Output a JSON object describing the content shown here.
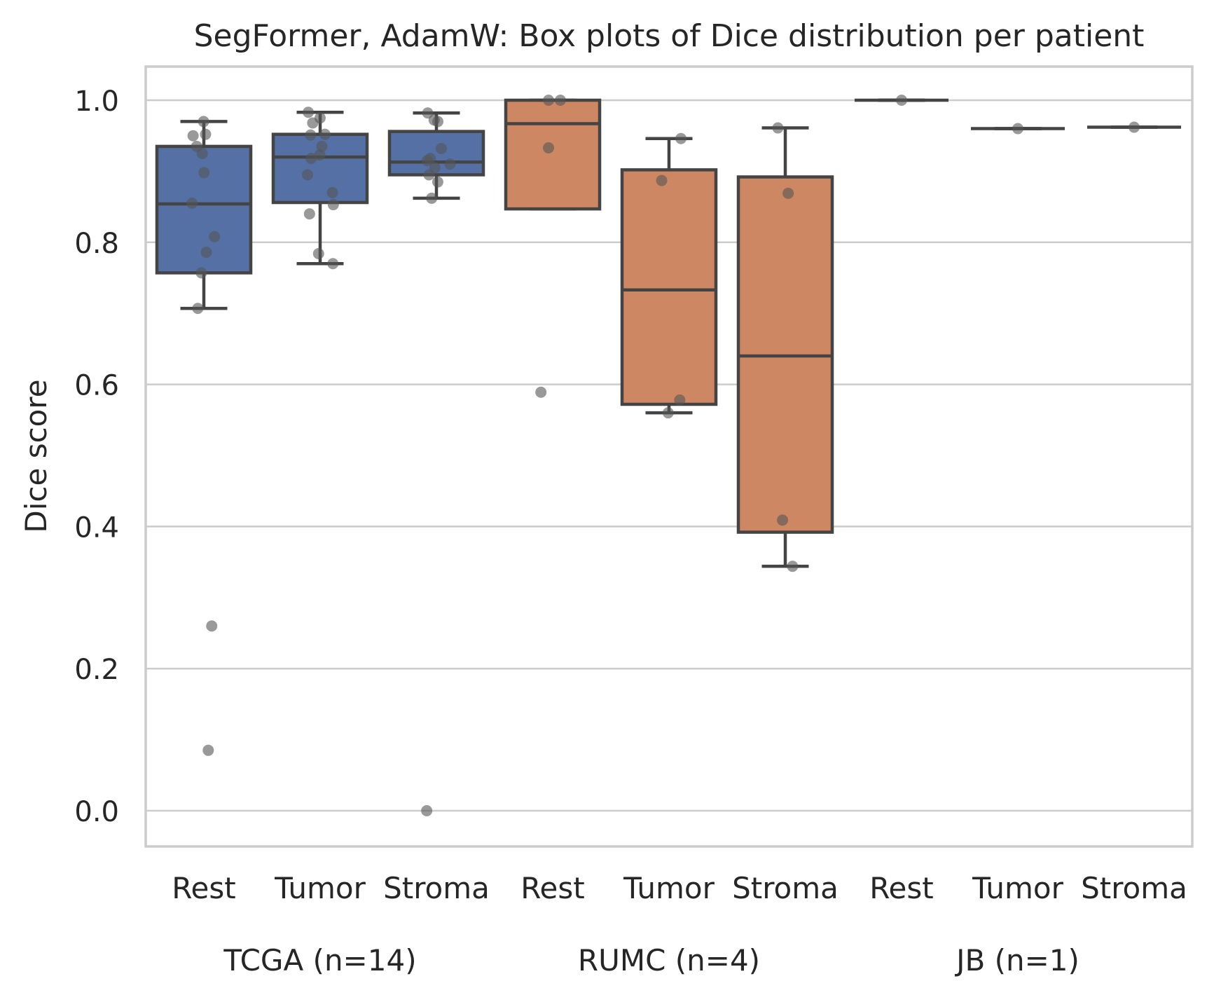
{
  "chart_data": {
    "type": "box",
    "title": "SegFormer, AdamW: Box plots of Dice distribution per patient",
    "ylabel": "Dice score",
    "xlabel": "",
    "ylim": [
      -0.05,
      1.05
    ],
    "yticks": [
      "0.0",
      "0.2",
      "0.4",
      "0.6",
      "0.8",
      "1.0"
    ],
    "grid": true,
    "colors": {
      "TCGA": "#5470a5",
      "RUMC": "#cd8762",
      "JB": "#cd8762",
      "edge": "#444444",
      "point": "#555555",
      "grid": "#cccccc"
    },
    "groups": [
      {
        "label": "TCGA (n=14)",
        "key": "TCGA"
      },
      {
        "label": "RUMC (n=4)",
        "key": "RUMC"
      },
      {
        "label": "JB (n=1)",
        "key": "JB"
      }
    ],
    "boxes": [
      {
        "category": "Rest",
        "group": "TCGA",
        "whisker_low": 0.707,
        "q1": 0.757,
        "median": 0.854,
        "q3": 0.935,
        "whisker_high": 0.97,
        "points": [
          0.97,
          0.952,
          0.95,
          0.935,
          0.925,
          0.898,
          0.855,
          0.808,
          0.786,
          0.757,
          0.707,
          0.26,
          0.085
        ]
      },
      {
        "category": "Tumor",
        "group": "TCGA",
        "whisker_low": 0.77,
        "q1": 0.856,
        "median": 0.92,
        "q3": 0.952,
        "whisker_high": 0.983,
        "points": [
          0.983,
          0.975,
          0.968,
          0.952,
          0.951,
          0.935,
          0.923,
          0.918,
          0.895,
          0.87,
          0.853,
          0.84,
          0.784,
          0.77
        ]
      },
      {
        "category": "Stroma",
        "group": "TCGA",
        "whisker_low": 0.862,
        "q1": 0.895,
        "median": 0.913,
        "q3": 0.956,
        "whisker_high": 0.982,
        "points": [
          0.982,
          0.972,
          0.97,
          0.932,
          0.918,
          0.915,
          0.91,
          0.905,
          0.895,
          0.885,
          0.862,
          0.0
        ]
      },
      {
        "category": "Rest",
        "group": "RUMC",
        "whisker_low": 0.847,
        "q1": 0.847,
        "median": 0.967,
        "q3": 1.0,
        "whisker_high": 1.0,
        "points": [
          1.0,
          1.0,
          0.933,
          0.589
        ]
      },
      {
        "category": "Tumor",
        "group": "RUMC",
        "whisker_low": 0.56,
        "q1": 0.572,
        "median": 0.733,
        "q3": 0.902,
        "whisker_high": 0.946,
        "points": [
          0.946,
          0.887,
          0.578,
          0.56
        ]
      },
      {
        "category": "Stroma",
        "group": "RUMC",
        "whisker_low": 0.344,
        "q1": 0.392,
        "median": 0.64,
        "q3": 0.892,
        "whisker_high": 0.961,
        "points": [
          0.961,
          0.869,
          0.409,
          0.344
        ]
      },
      {
        "category": "Rest",
        "group": "JB",
        "whisker_low": 1.0,
        "q1": 1.0,
        "median": 1.0,
        "q3": 1.0,
        "whisker_high": 1.0,
        "points": [
          1.0
        ]
      },
      {
        "category": "Tumor",
        "group": "JB",
        "whisker_low": 0.96,
        "q1": 0.96,
        "median": 0.96,
        "q3": 0.96,
        "whisker_high": 0.96,
        "points": [
          0.96
        ]
      },
      {
        "category": "Stroma",
        "group": "JB",
        "whisker_low": 0.962,
        "q1": 0.962,
        "median": 0.962,
        "q3": 0.962,
        "whisker_high": 0.962,
        "points": [
          0.962
        ]
      }
    ]
  }
}
